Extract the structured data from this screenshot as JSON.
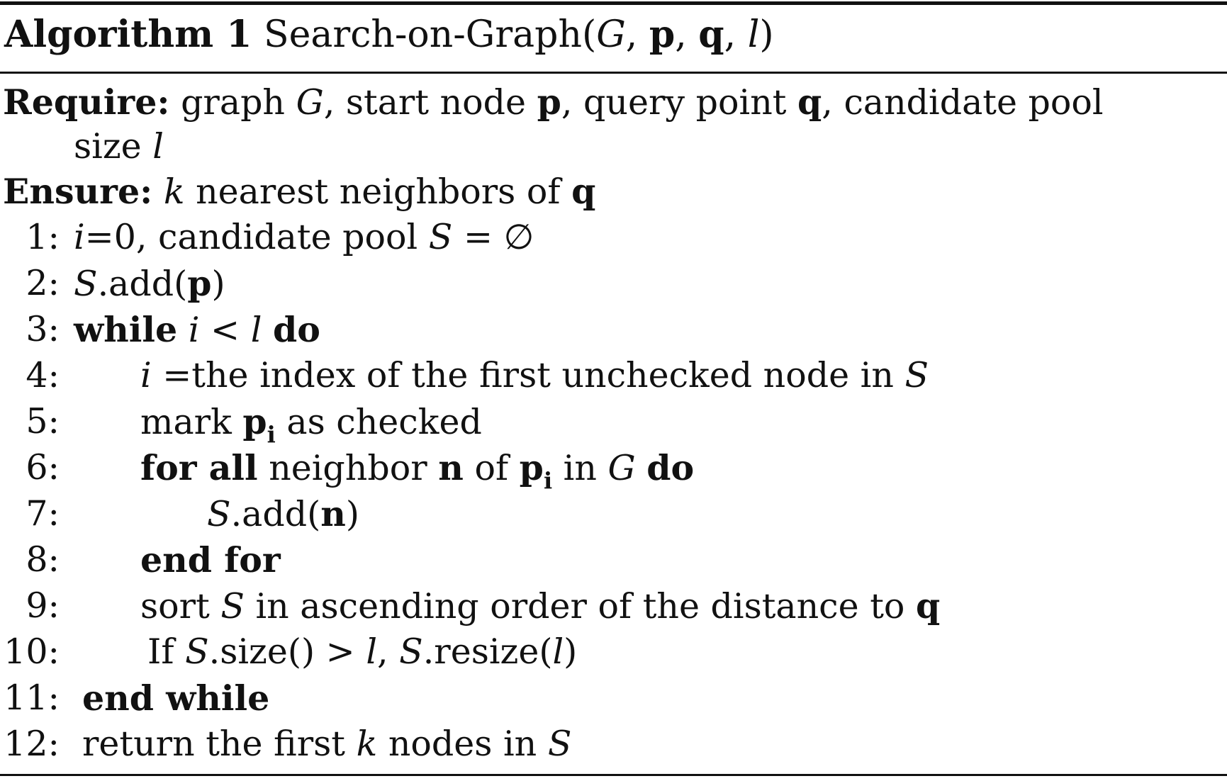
{
  "algorithm": {
    "title_label": "Algorithm 1",
    "title_name": "Search-on-Graph(",
    "title_g": "G",
    "title_p": "p",
    "title_q": "q",
    "title_l": "l",
    "title_close": ")",
    "require_label": "Require:",
    "require_text_1": "graph",
    "require_g": "G",
    "require_text_2": ", start node",
    "require_p": "p",
    "require_text_3": ", query point",
    "require_q": "q",
    "require_text_4": ", candidate pool",
    "require_text_5": "size",
    "require_l": "l",
    "ensure_label": "Ensure:",
    "ensure_k": "k",
    "ensure_text": "nearest neighbors of",
    "ensure_q": "q",
    "lines": [
      {
        "num": "1:"
      },
      {
        "num": "2:"
      },
      {
        "num": "3:"
      },
      {
        "num": "4:"
      },
      {
        "num": "5:"
      },
      {
        "num": "6:"
      },
      {
        "num": "7:"
      },
      {
        "num": "8:"
      },
      {
        "num": "9:"
      },
      {
        "num": "10:"
      },
      {
        "num": "11:"
      },
      {
        "num": "12:"
      }
    ],
    "l1": {
      "i": "i",
      "eq0": "=0, candidate pool",
      "S": "S",
      "eqempty": "= ∅"
    },
    "l2": {
      "S": "S",
      "add": ".add(",
      "p": "p",
      "close": ")"
    },
    "l3": {
      "while": "while",
      "i": "i",
      "lt": "<",
      "l": "l",
      "do": "do"
    },
    "l4": {
      "i": "i",
      "text": "=the index of the first unchecked node in",
      "S": "S"
    },
    "l5": {
      "text1": "mark",
      "p": "p",
      "sub": "i",
      "text2": "as checked"
    },
    "l6": {
      "forall": "for all",
      "text1": "neighbor",
      "n": "n",
      "text2": "of",
      "p": "p",
      "sub": "i",
      "text3": "in",
      "G": "G",
      "do": "do"
    },
    "l7": {
      "S": "S",
      "add": ".add(",
      "n": "n",
      "close": ")"
    },
    "l8": {
      "endfor": "end for"
    },
    "l9": {
      "text1": "sort",
      "S": "S",
      "text2": "in ascending order of the distance to",
      "q": "q"
    },
    "l10": {
      "if": "If",
      "S1": "S",
      "size": ".size() >",
      "l1": "l",
      "comma": ",",
      "S2": "S",
      "resize": ".resize(",
      "l2": "l",
      "close": ")"
    },
    "l11": {
      "endwhile": "end while"
    },
    "l12": {
      "text1": "return the first",
      "k": "k",
      "text2": "nodes in",
      "S": "S"
    }
  }
}
